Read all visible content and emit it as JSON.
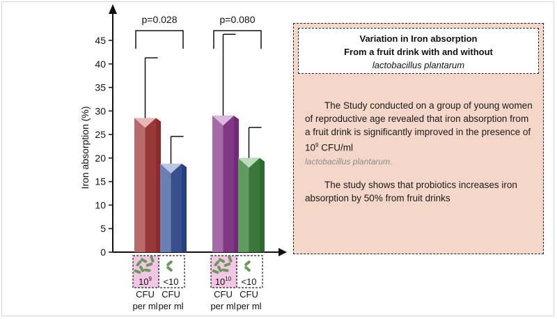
{
  "chart_data": {
    "type": "bar",
    "ylabel": "Iron absorption (%)",
    "ylim": [
      0,
      45
    ],
    "yticks": [
      0,
      5,
      10,
      15,
      20,
      25,
      30,
      35,
      40,
      45
    ],
    "groups": [
      {
        "pvalue": "p=0.028",
        "bars": [
          {
            "value": 28.5,
            "error_upper": 41.3,
            "dose_main": "10",
            "dose_exp": "9",
            "unit_line1": "CFU",
            "unit_line2": "per ml",
            "icon": "bacteria-many-icon",
            "front_color": "#b86a6a",
            "side_color": "#8e2a2a",
            "top_color": "#e8b7b7"
          },
          {
            "value": 18.8,
            "error_upper": 24.6,
            "dose_main": "<10",
            "dose_exp": "",
            "unit_line1": "CFU",
            "unit_line2": "per ml",
            "icon": "bacteria-few-icon",
            "front_color": "#6b7fb3",
            "side_color": "#2a3f80",
            "top_color": "#b9c5e3"
          }
        ]
      },
      {
        "pvalue": "p=0.080",
        "bars": [
          {
            "value": 29.0,
            "error_upper": 46.3,
            "dose_main": "10",
            "dose_exp": "10",
            "unit_line1": "CFU",
            "unit_line2": "per ml",
            "icon": "bacteria-many-icon",
            "front_color": "#a56aa8",
            "side_color": "#74287a",
            "top_color": "#ddb8e0"
          },
          {
            "value": 20.0,
            "error_upper": 26.5,
            "dose_main": "<10",
            "dose_exp": "",
            "unit_line1": "CFU",
            "unit_line2": "per ml",
            "icon": "bacteria-few-icon",
            "front_color": "#5f9a5f",
            "side_color": "#2d6a2d",
            "top_color": "#b9dcb9"
          }
        ]
      }
    ]
  },
  "info": {
    "title_line1": "Variation in Iron absorption",
    "title_line2": "From a fruit drink with and without",
    "title_line3": "lactobacillus plantarum",
    "p1_text": "The Study conducted on a group of young women of reproductive age revealed that iron absorption from a fruit drink is significantly improved in the presence of 10",
    "p1_exp": "9",
    "p1_unit": " CFU/ml",
    "p1_species": "lactobacillus plantarum.",
    "p2_text": "The study shows that probiotics increases iron absorption by 50% from fruit drinks"
  },
  "colors": {
    "box_fill": "#f4d7c9",
    "dose_label_bg": "#f3c6e6",
    "bacteria_green": "#6a9a5a"
  }
}
